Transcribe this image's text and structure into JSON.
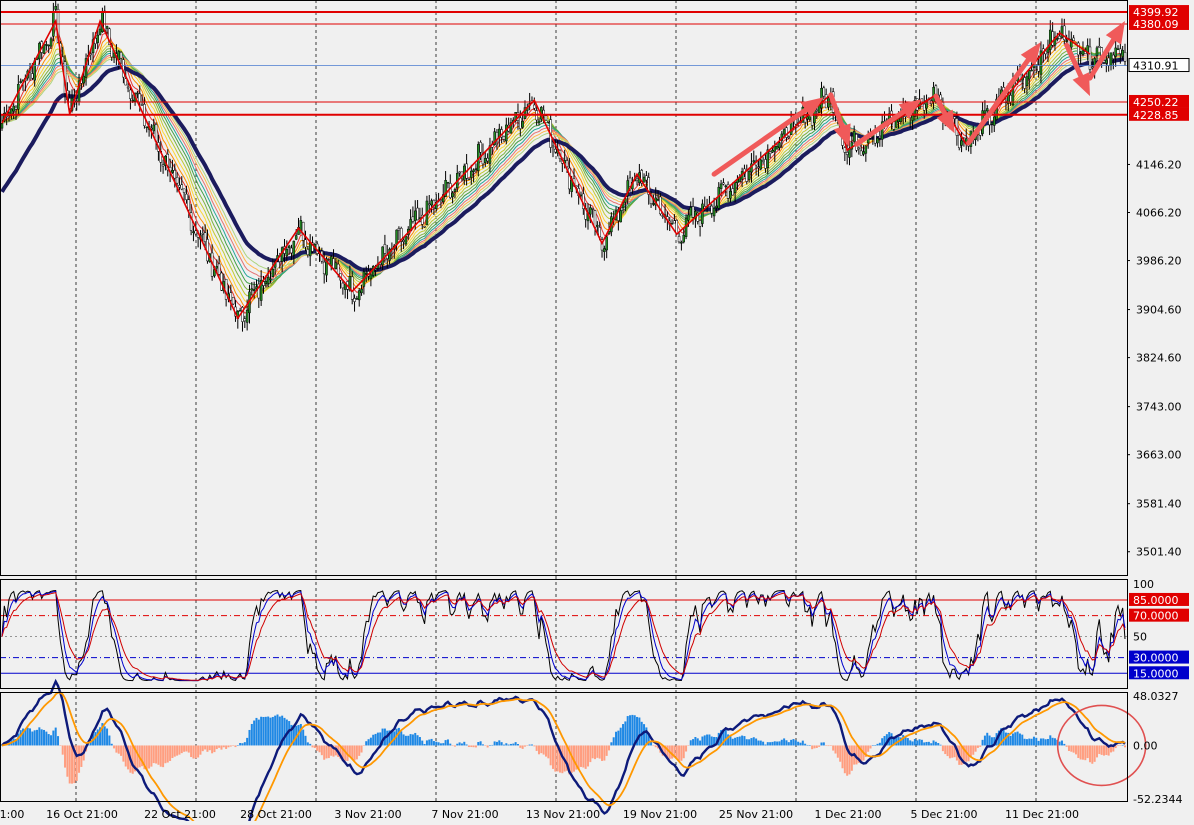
{
  "chart_data": [
    {
      "type": "candlestick",
      "pane": "price",
      "ylim": [
        3461.0,
        4420.0
      ],
      "y_ticks": [
        "4146.20",
        "4066.20",
        "3986.20",
        "3904.60",
        "3824.60",
        "3743.00",
        "3663.00",
        "3581.40",
        "3501.40"
      ],
      "x_ticks": [
        "1:00",
        "16 Oct 21:00",
        "22 Oct 21:00",
        "28 Oct 21:00",
        "3 Nov 21:00",
        "7 Nov 21:00",
        "13 Nov 21:00",
        "19 Nov 21:00",
        "25 Nov 21:00",
        "1 Dec 21:00",
        "5 Dec 21:00",
        "11 Dec 21:00"
      ],
      "price_levels": [
        {
          "value": 4399.92,
          "label": "4399.92",
          "color": "#e00000",
          "kind": "resistance"
        },
        {
          "value": 4380.09,
          "label": "4380.09",
          "color": "#e00000",
          "kind": "resistance"
        },
        {
          "value": 4310.91,
          "label": "4310.91",
          "color": "#1a1a1a",
          "kind": "current-price"
        },
        {
          "value": 4250.22,
          "label": "4250.22",
          "color": "#e00000",
          "kind": "support"
        },
        {
          "value": 4228.85,
          "label": "4228.85",
          "color": "#e00000",
          "kind": "support"
        }
      ],
      "zigzag": [
        {
          "bar": 0,
          "price": 4215
        },
        {
          "bar": 23,
          "price": 4385
        },
        {
          "bar": 29,
          "price": 4230
        },
        {
          "bar": 42,
          "price": 4385
        },
        {
          "bar": 101,
          "price": 3890
        },
        {
          "bar": 127,
          "price": 4040
        },
        {
          "bar": 150,
          "price": 3935
        },
        {
          "bar": 228,
          "price": 4253
        },
        {
          "bar": 257,
          "price": 4015
        },
        {
          "bar": 272,
          "price": 4130
        },
        {
          "bar": 289,
          "price": 4030
        },
        {
          "bar": 355,
          "price": 4263
        },
        {
          "bar": 362,
          "price": 4170
        },
        {
          "bar": 400,
          "price": 4262
        },
        {
          "bar": 413,
          "price": 4180
        },
        {
          "bar": 453,
          "price": 4365
        },
        {
          "bar": 466,
          "price": 4330
        }
      ],
      "trend_arrows": [
        {
          "from": [
            305,
            4130
          ],
          "to": [
            352,
            4258
          ]
        },
        {
          "from": [
            355,
            4262
          ],
          "to": [
            363,
            4175
          ]
        },
        {
          "from": [
            366,
            4180
          ],
          "to": [
            394,
            4255
          ]
        },
        {
          "from": [
            400,
            4260
          ],
          "to": [
            408,
            4198
          ]
        },
        {
          "from": [
            414,
            4182
          ],
          "to": [
            445,
            4350
          ]
        },
        {
          "from": [
            456,
            4345
          ],
          "to": [
            466,
            4260
          ]
        },
        {
          "from": [
            466,
            4290
          ],
          "to": [
            481,
            4385
          ]
        }
      ],
      "ribbon": {
        "count": 10,
        "colors": [
          "#e53935",
          "#fb8c00",
          "#fdd835",
          "#c0ca33",
          "#7cb342",
          "#43a047",
          "#26a69a",
          "#e57373",
          "#ffb74d",
          "#aed581"
        ]
      },
      "slow_ma_color": "#1b1b5e",
      "candle_up_color": "#228b22",
      "candle_down_color": "#ffffff",
      "candle_wick_color": "#000000"
    },
    {
      "type": "line",
      "pane": "oscillator",
      "ylim": [
        0,
        105
      ],
      "y_ticks": [
        "100",
        "50"
      ],
      "levels": [
        {
          "value": 85,
          "label": "85.0000",
          "color": "#e00000"
        },
        {
          "value": 70,
          "label": "70.0000",
          "color": "#e00000"
        },
        {
          "value": 30,
          "label": "30.0000",
          "color": "#0000cc"
        },
        {
          "value": 15,
          "label": "15.0000",
          "color": "#0000cc"
        }
      ],
      "series_colors": [
        "#000000",
        "#0000cc",
        "#d00000"
      ]
    },
    {
      "type": "bar+line",
      "pane": "macd",
      "ylim": [
        -55,
        52
      ],
      "y_ticks": [
        "48.0327",
        "0.00",
        "-52.2344"
      ],
      "histogram_colors": {
        "positive": "#1e88e5",
        "negative": "#ff9e80"
      },
      "line_colors": [
        "#0d1a7a",
        "#ff9800"
      ],
      "annotation_circle": {
        "center": [
          471,
          0
        ],
        "color": "#e05050"
      }
    }
  ]
}
